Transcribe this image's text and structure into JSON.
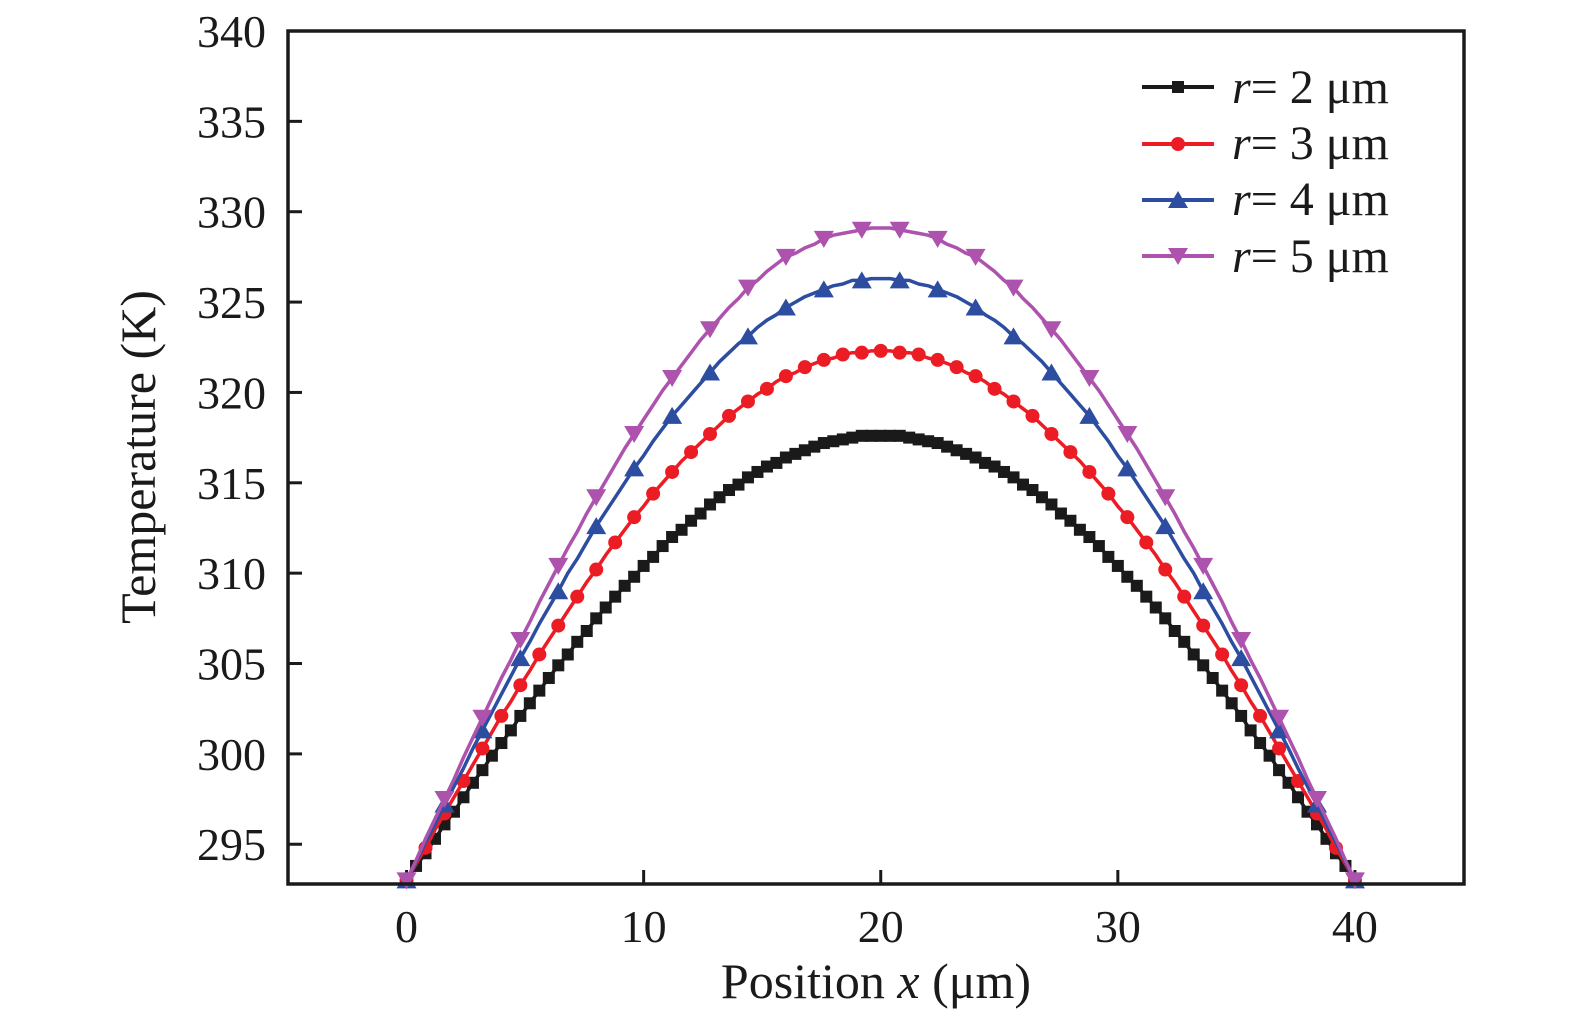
{
  "figure": {
    "background": "#ffffff",
    "axis_color": "#1a1a1a"
  },
  "chart_data": {
    "type": "line",
    "title": "",
    "xlabel": "Position x (μm)",
    "xlabel_parts": {
      "pre": "Position ",
      "var": "x",
      "post": " (μm)"
    },
    "ylabel": "Temperature (K)",
    "xlim": [
      -5,
      44.6
    ],
    "ylim": [
      292.8,
      340
    ],
    "xticks": [
      0,
      10,
      20,
      30,
      40
    ],
    "yticks": [
      295,
      300,
      305,
      310,
      315,
      320,
      325,
      330,
      335,
      340
    ],
    "grid": false,
    "frame": true,
    "tick_direction": "in",
    "legend_position": "top-right",
    "x": [
      0,
      0.4,
      0.8,
      1.2,
      1.6,
      2,
      2.4,
      2.8,
      3.2,
      3.6,
      4,
      4.4,
      4.8,
      5.2,
      5.6,
      6,
      6.4,
      6.8,
      7.2,
      7.6,
      8,
      8.4,
      8.8,
      9.2,
      9.6,
      10,
      10.4,
      10.8,
      11.2,
      11.6,
      12,
      12.4,
      12.8,
      13.2,
      13.6,
      14,
      14.4,
      14.8,
      15.2,
      15.6,
      16,
      16.4,
      16.8,
      17.2,
      17.6,
      18,
      18.4,
      18.8,
      19.2,
      19.6,
      20,
      20.4,
      20.8,
      21.2,
      21.6,
      22,
      22.4,
      22.8,
      23.2,
      23.6,
      24,
      24.4,
      24.8,
      25.2,
      25.6,
      26,
      26.4,
      26.8,
      27.2,
      27.6,
      28,
      28.4,
      28.8,
      29.2,
      29.6,
      30,
      30.4,
      30.8,
      31.2,
      31.6,
      32,
      32.4,
      32.8,
      33.2,
      33.6,
      34,
      34.4,
      34.8,
      35.2,
      35.6,
      36,
      36.4,
      36.8,
      37.2,
      37.6,
      38,
      38.4,
      38.8,
      39.2,
      39.6,
      40
    ],
    "series": [
      {
        "id": "r-2um",
        "label": "r = 2 μm",
        "label_var": "r",
        "label_rest": " = 2 μm",
        "color": "#1a1a1a",
        "marker": "square",
        "marker_every": 1,
        "peak": 317.6,
        "values": [
          293.0,
          293.8,
          294.5,
          295.3,
          296.1,
          296.8,
          297.6,
          298.4,
          299.1,
          299.9,
          300.6,
          301.3,
          302.1,
          302.8,
          303.5,
          304.2,
          304.9,
          305.5,
          306.2,
          306.8,
          307.5,
          308.1,
          308.7,
          309.3,
          309.8,
          310.4,
          310.9,
          311.5,
          312.0,
          312.4,
          312.9,
          313.3,
          313.8,
          314.2,
          314.6,
          314.9,
          315.3,
          315.6,
          315.9,
          316.1,
          316.4,
          316.6,
          316.8,
          317.0,
          317.2,
          317.3,
          317.4,
          317.5,
          317.6,
          317.6,
          317.6,
          317.6,
          317.6,
          317.5,
          317.4,
          317.3,
          317.2,
          317.0,
          316.8,
          316.6,
          316.4,
          316.1,
          315.9,
          315.6,
          315.3,
          314.9,
          314.6,
          314.2,
          313.8,
          313.3,
          312.9,
          312.4,
          312.0,
          311.5,
          310.9,
          310.4,
          309.8,
          309.3,
          308.7,
          308.1,
          307.5,
          306.8,
          306.2,
          305.5,
          304.9,
          304.2,
          303.5,
          302.8,
          302.1,
          301.3,
          300.6,
          299.9,
          299.1,
          298.4,
          297.6,
          296.8,
          296.1,
          295.3,
          294.5,
          293.8,
          293.0
        ]
      },
      {
        "id": "r-3um",
        "label": "r = 3 μm",
        "label_var": "r",
        "label_rest": " = 3 μm",
        "color": "#ec1c24",
        "marker": "circle",
        "marker_every": 2,
        "peak": 322.3,
        "values": [
          293.0,
          293.9,
          294.8,
          295.8,
          296.7,
          297.6,
          298.5,
          299.4,
          300.3,
          301.2,
          302.1,
          302.9,
          303.8,
          304.6,
          305.5,
          306.3,
          307.1,
          307.9,
          308.7,
          309.5,
          310.2,
          311.0,
          311.7,
          312.4,
          313.1,
          313.7,
          314.4,
          315.0,
          315.6,
          316.2,
          316.7,
          317.2,
          317.7,
          318.2,
          318.7,
          319.1,
          319.5,
          319.9,
          320.2,
          320.6,
          320.9,
          321.1,
          321.4,
          321.6,
          321.8,
          321.9,
          322.1,
          322.2,
          322.2,
          322.3,
          322.3,
          322.3,
          322.2,
          322.2,
          322.1,
          321.9,
          321.8,
          321.6,
          321.4,
          321.1,
          320.9,
          320.6,
          320.2,
          319.9,
          319.5,
          319.1,
          318.7,
          318.2,
          317.7,
          317.2,
          316.7,
          316.2,
          315.6,
          315.0,
          314.4,
          313.7,
          313.1,
          312.4,
          311.7,
          311.0,
          310.2,
          309.5,
          308.7,
          307.9,
          307.1,
          306.3,
          305.5,
          304.6,
          303.8,
          302.9,
          302.1,
          301.2,
          300.3,
          299.4,
          298.5,
          297.6,
          296.7,
          295.8,
          294.8,
          293.9,
          293.0
        ]
      },
      {
        "id": "r-4um",
        "label": "r = 4 μm",
        "label_var": "r",
        "label_rest": " = 4 μm",
        "color": "#2c4da0",
        "marker": "triangle-up",
        "marker_every": 4,
        "peak": 326.3,
        "values": [
          293.0,
          294.0,
          295.1,
          296.1,
          297.2,
          298.2,
          299.2,
          300.3,
          301.3,
          302.3,
          303.3,
          304.3,
          305.3,
          306.2,
          307.2,
          308.1,
          309.0,
          310.0,
          310.8,
          311.7,
          312.6,
          313.4,
          314.2,
          315.0,
          315.8,
          316.5,
          317.3,
          318.0,
          318.7,
          319.3,
          319.9,
          320.5,
          321.1,
          321.7,
          322.2,
          322.7,
          323.1,
          323.6,
          324.0,
          324.3,
          324.7,
          325.0,
          325.3,
          325.5,
          325.7,
          325.9,
          326.0,
          326.2,
          326.2,
          326.3,
          326.3,
          326.3,
          326.2,
          326.2,
          326.0,
          325.9,
          325.7,
          325.5,
          325.3,
          325.0,
          324.7,
          324.3,
          324.0,
          323.6,
          323.1,
          322.7,
          322.2,
          321.7,
          321.1,
          320.5,
          319.9,
          319.3,
          318.7,
          318.0,
          317.3,
          316.5,
          315.8,
          315.0,
          314.2,
          313.4,
          312.6,
          311.7,
          310.8,
          310.0,
          309.0,
          308.1,
          307.2,
          306.2,
          305.3,
          304.3,
          303.3,
          302.3,
          301.3,
          300.3,
          299.2,
          298.2,
          297.2,
          296.1,
          295.1,
          294.0,
          293.0
        ]
      },
      {
        "id": "r-5um",
        "label": "r = 5 μm",
        "label_var": "r",
        "label_rest": " = 5 μm",
        "color": "#ad52ad",
        "marker": "triangle-down",
        "marker_every": 4,
        "peak": 329.1,
        "values": [
          293.0,
          294.1,
          295.3,
          296.4,
          297.5,
          298.6,
          299.8,
          300.9,
          302.0,
          303.1,
          304.2,
          305.2,
          306.3,
          307.3,
          308.4,
          309.4,
          310.4,
          311.4,
          312.3,
          313.3,
          314.2,
          315.1,
          316.0,
          316.9,
          317.7,
          318.5,
          319.3,
          320.1,
          320.8,
          321.5,
          322.2,
          322.9,
          323.5,
          324.1,
          324.7,
          325.2,
          325.8,
          326.2,
          326.7,
          327.1,
          327.5,
          327.7,
          328.0,
          328.2,
          328.5,
          328.7,
          328.8,
          328.9,
          329.0,
          329.1,
          329.1,
          329.1,
          329.0,
          328.9,
          328.8,
          328.7,
          328.5,
          328.2,
          328.0,
          327.7,
          327.5,
          327.1,
          326.7,
          326.2,
          325.8,
          325.2,
          324.7,
          324.1,
          323.5,
          322.9,
          322.2,
          321.5,
          320.8,
          320.1,
          319.3,
          318.5,
          317.7,
          316.9,
          316.0,
          315.1,
          314.2,
          313.3,
          312.3,
          311.4,
          310.4,
          309.4,
          308.4,
          307.3,
          306.3,
          305.2,
          304.2,
          303.1,
          302.0,
          300.9,
          299.8,
          298.6,
          297.5,
          296.4,
          295.3,
          294.1,
          293.0
        ]
      }
    ]
  }
}
